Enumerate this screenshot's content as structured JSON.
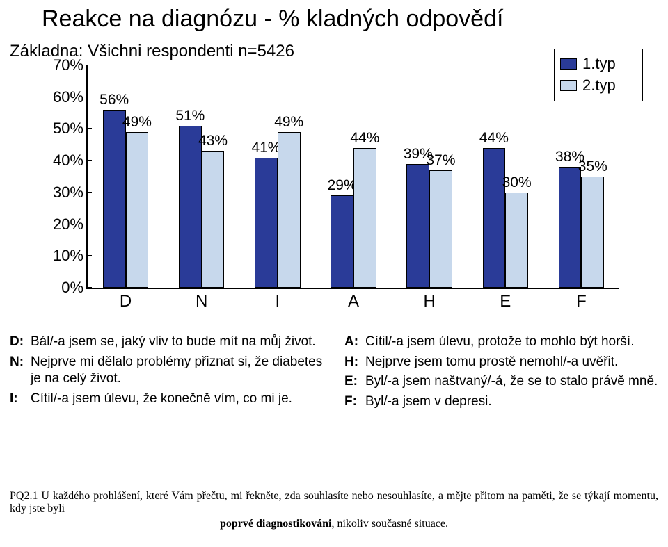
{
  "title": "Reakce na diagnózu - % kladných odpovědí",
  "subtitle": "Základna: Všichni respondenti n=5426",
  "legend": {
    "items": [
      {
        "label": "1.typ",
        "color": "#2a3b98"
      },
      {
        "label": "2.typ",
        "color": "#c7d8ec"
      }
    ],
    "border_color": "#000000"
  },
  "chart": {
    "type": "bar",
    "y": {
      "min": 0,
      "max": 70,
      "step": 10,
      "ticks": [
        0,
        10,
        20,
        30,
        40,
        50,
        60,
        70
      ]
    },
    "categories": [
      "D",
      "N",
      "I",
      "A",
      "H",
      "E",
      "F"
    ],
    "series": [
      {
        "name": "1.typ",
        "color": "#2a3b98",
        "values": [
          56,
          51,
          41,
          29,
          39,
          44,
          38
        ]
      },
      {
        "name": "2.typ",
        "color": "#c7d8ec",
        "values": [
          49,
          43,
          49,
          44,
          37,
          30,
          35
        ]
      }
    ],
    "value_suffix": "%",
    "value_fontsize": 21,
    "xlabel_fontsize": 24,
    "bar_border": "#000000",
    "background": "#ffffff",
    "bar_width_ratio": 0.3,
    "group_gap_ratio": 0.4
  },
  "definitions_left": [
    {
      "key": "D:",
      "text": "Bál/-a jsem se, jaký vliv to bude mít na můj život."
    },
    {
      "key": "N:",
      "text": "Nejprve mi dělalo problémy přiznat si, že diabetes je na celý život."
    },
    {
      "key": "I:",
      "text": "Cítil/-a jsem úlevu, že konečně vím, co mi je."
    }
  ],
  "definitions_right": [
    {
      "key": "A:",
      "text": "Cítil/-a jsem úlevu, protože to mohlo být horší."
    },
    {
      "key": "H:",
      "text": "Nejprve jsem tomu prostě nemohl/-a uvěřit."
    },
    {
      "key": "E:",
      "text": "Byl/-a jsem naštvaný/-á, že se to stalo právě mně."
    },
    {
      "key": "F:",
      "text": "Byl/-a jsem v depresi."
    }
  ],
  "footnote": {
    "line1_pre": "PQ2.1 U každého prohlášení, které Vám přečtu, mi řekněte, zda souhlasíte nebo nesouhlasíte, a mějte přitom na paměti, že se týkají momentu, kdy jste byli ",
    "line2_bold": "poprvé diagnostikováni",
    "line2_rest": ", nikoliv současné situace."
  }
}
